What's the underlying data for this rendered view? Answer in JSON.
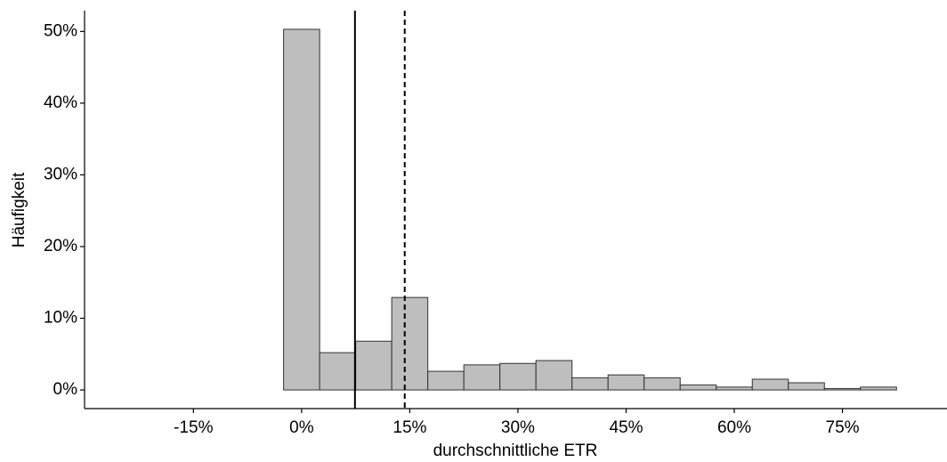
{
  "chart_data": {
    "type": "histogram",
    "xlabel": "durchschnittliche ETR",
    "ylabel": "Häufigkeit",
    "bins": [
      -22.5,
      -17.5,
      -12.5,
      -7.5,
      -2.5,
      2.5,
      7.5,
      12.5,
      17.5,
      22.5,
      27.5,
      32.5,
      37.5,
      42.5,
      47.5,
      52.5,
      57.5,
      62.5,
      67.5,
      72.5,
      77.5,
      82.5
    ],
    "counts": [
      0,
      0,
      0,
      0,
      50.3,
      5.2,
      6.8,
      12.9,
      2.6,
      3.5,
      3.7,
      4.1,
      1.7,
      2.1,
      1.7,
      0.7,
      0.4,
      1.5,
      1.0,
      0.2,
      0.4
    ],
    "color": "#bebebe",
    "edgecolor": "#333333",
    "vlines": [
      {
        "value": 7.4,
        "style": "solid"
      },
      {
        "value": 14.3,
        "style": "dashed"
      }
    ],
    "xlim": [
      -30.1,
      89.5
    ],
    "ylim": [
      -2.6,
      52.9
    ],
    "xticks": [
      {
        "value": -15,
        "label": "-15%"
      },
      {
        "value": 0,
        "label": "0%"
      },
      {
        "value": 15,
        "label": "15%"
      },
      {
        "value": 30,
        "label": "30%"
      },
      {
        "value": 45,
        "label": "45%"
      },
      {
        "value": 60,
        "label": "60%"
      },
      {
        "value": 75,
        "label": "75%"
      }
    ],
    "yticks": [
      {
        "value": 0,
        "label": "0%"
      },
      {
        "value": 10,
        "label": "10%"
      },
      {
        "value": 20,
        "label": "20%"
      },
      {
        "value": 30,
        "label": "30%"
      },
      {
        "value": 40,
        "label": "40%"
      },
      {
        "value": 50,
        "label": "50%"
      }
    ],
    "grid": false
  }
}
